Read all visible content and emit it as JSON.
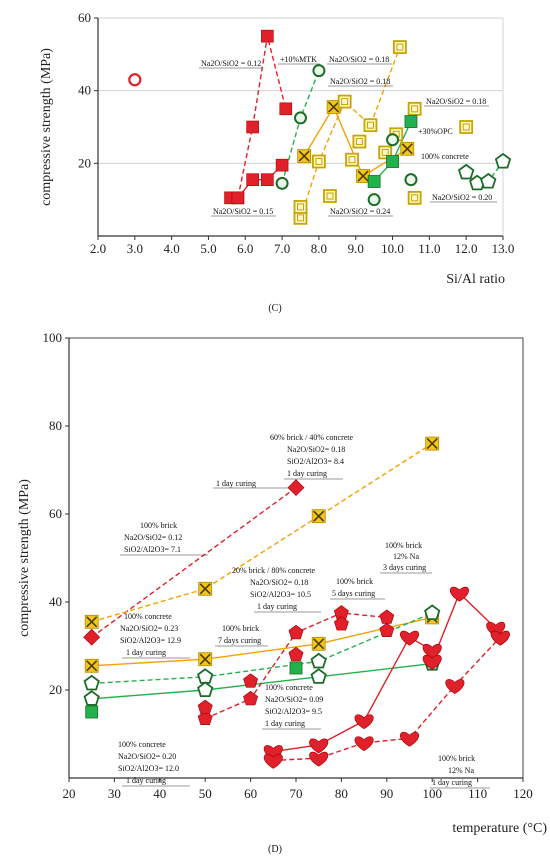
{
  "colors": {
    "red": "#e0202a",
    "red_dark": "#8c0000",
    "yellow": "#f5c518",
    "yellow_dark": "#7a6a00",
    "orange_line": "#f4a200",
    "green": "#22b24c",
    "green_dark": "#1d6b2a",
    "grid": "#cccccc"
  },
  "chart_data": [
    {
      "type": "scatter",
      "panel_label": "(C)",
      "xlabel": "Si/Al ratio",
      "ylabel": "compressive strength (MPa)",
      "xlim": [
        2.0,
        13.0
      ],
      "ylim": [
        0,
        60
      ],
      "xticks": [
        "2.0",
        "3.0",
        "4.0",
        "5.0",
        "6.0",
        "7.0",
        "8.0",
        "9.0",
        "10.0",
        "11.0",
        "12.0",
        "13.0"
      ],
      "yticks": [
        "20",
        "40",
        "60"
      ],
      "grid": true,
      "series": [
        {
          "marker": "red-square",
          "line": "red-dashed",
          "points": [
            [
              5.6,
              10.5
            ],
            [
              5.8,
              10.5
            ],
            [
              6.2,
              30
            ],
            [
              6.6,
              55
            ],
            [
              7.1,
              35
            ]
          ]
        },
        {
          "marker": "red-square",
          "line": "red-solid",
          "points": [
            [
              5.8,
              10.5
            ],
            [
              6.2,
              15.5
            ],
            [
              6.6,
              15.5
            ],
            [
              7.0,
              19.5
            ]
          ]
        },
        {
          "marker": "open-circle-red",
          "points": [
            [
              3.0,
              43
            ]
          ]
        },
        {
          "marker": "green-open-circle",
          "line": "green-dashed",
          "points": [
            [
              7.0,
              14.5
            ],
            [
              7.5,
              32.5
            ],
            [
              8.0,
              45.5
            ]
          ]
        },
        {
          "marker": "yellow-x",
          "line": "orange-solid",
          "points": [
            [
              7.6,
              22
            ],
            [
              8.4,
              35.5
            ],
            [
              9.2,
              16.5
            ],
            [
              10.4,
              24
            ]
          ]
        },
        {
          "marker": "yellow-square",
          "line": "orange-dashed",
          "points": [
            [
              7.5,
              5
            ],
            [
              8.0,
              20.5
            ],
            [
              8.7,
              37
            ],
            [
              9.4,
              30.5
            ],
            [
              10.2,
              52
            ]
          ]
        },
        {
          "marker": "yellow-square",
          "points": [
            [
              7.5,
              8
            ],
            [
              8.3,
              11
            ],
            [
              8.9,
              21
            ],
            [
              9.1,
              26
            ],
            [
              9.8,
              23
            ],
            [
              10.1,
              28
            ],
            [
              10.6,
              35
            ],
            [
              10.6,
              10.5
            ],
            [
              12.0,
              30
            ]
          ]
        },
        {
          "marker": "green-square",
          "line": "green-solid",
          "points": [
            [
              9.5,
              15
            ],
            [
              10.0,
              20.5
            ],
            [
              10.5,
              31.5
            ]
          ]
        },
        {
          "marker": "green-open-circle",
          "points": [
            [
              9.5,
              10
            ],
            [
              10.0,
              26.5
            ],
            [
              10.5,
              15.5
            ]
          ]
        },
        {
          "marker": "green-pentagon",
          "line": "green-dashed",
          "points": [
            [
              12.0,
              17.5
            ],
            [
              12.3,
              14.5
            ],
            [
              12.6,
              15
            ],
            [
              13.0,
              20.5
            ]
          ]
        }
      ],
      "annotations": [
        {
          "text": "Na2O/SiO2 = 0.12"
        },
        {
          "text": "+10%MTK"
        },
        {
          "text": "Na2O/SiO2 = 0.18"
        },
        {
          "text": "Na2O/SiO2 = 0.18"
        },
        {
          "text": "Na2O/SiO2 = 0.18"
        },
        {
          "text": "+30%OPC"
        },
        {
          "text": "100% concrete"
        },
        {
          "text": "Na2O/SiO2 = 0.15"
        },
        {
          "text": "Na2O/SiO2 = 0.24"
        },
        {
          "text": "Na2O/SiO2 = 0.20"
        }
      ]
    },
    {
      "type": "scatter",
      "panel_label": "(D)",
      "xlabel": "temperature (°C)",
      "ylabel": "compressive strength (MPa)",
      "xlim": [
        20,
        120
      ],
      "ylim": [
        0,
        100
      ],
      "xticks": [
        "20",
        "30",
        "40",
        "50",
        "60",
        "70",
        "80",
        "90",
        "100",
        "110",
        "120"
      ],
      "yticks": [
        "20",
        "40",
        "60",
        "80",
        "100"
      ],
      "grid": false,
      "series": [
        {
          "marker": "red-diamond",
          "line": "red-dashed",
          "points": [
            [
              25,
              32
            ],
            [
              70,
              66
            ]
          ]
        },
        {
          "marker": "yellow-x",
          "line": "orange-dashed",
          "points": [
            [
              25,
              35.5
            ],
            [
              50,
              43
            ],
            [
              75,
              59.5
            ],
            [
              100,
              76
            ]
          ]
        },
        {
          "marker": "yellow-x",
          "line": "orange-solid",
          "points": [
            [
              25,
              25.5
            ],
            [
              50,
              27
            ],
            [
              75,
              30.5
            ],
            [
              100,
              36.5
            ]
          ]
        },
        {
          "marker": "green-pentagon",
          "line": "green-dashed",
          "points": [
            [
              25,
              21.5
            ],
            [
              50,
              23
            ],
            [
              75,
              26.5
            ],
            [
              100,
              37.5
            ]
          ]
        },
        {
          "marker": "green-pentagon",
          "line": "green-solid",
          "points": [
            [
              25,
              18
            ],
            [
              50,
              20
            ],
            [
              75,
              23
            ],
            [
              100,
              26
            ]
          ]
        },
        {
          "marker": "green-square",
          "points": [
            [
              25,
              15
            ],
            [
              70,
              25
            ]
          ]
        },
        {
          "marker": "red-pentagon",
          "line": "red-dashed",
          "points": [
            [
              50,
              13.5
            ],
            [
              60,
              18
            ],
            [
              70,
              33
            ],
            [
              80,
              37.5
            ],
            [
              90,
              36.5
            ]
          ]
        },
        {
          "marker": "red-pentagon",
          "points": [
            [
              50,
              16
            ],
            [
              60,
              22
            ],
            [
              70,
              28
            ],
            [
              80,
              35
            ],
            [
              90,
              33.5
            ]
          ]
        },
        {
          "marker": "red-heart",
          "line": "red-solid",
          "points": [
            [
              65,
              6
            ],
            [
              75,
              7.5
            ],
            [
              85,
              13
            ],
            [
              95,
              32
            ],
            [
              100,
              29
            ],
            [
              100,
              26.5
            ],
            [
              106,
              42
            ],
            [
              114,
              34
            ],
            [
              115,
              32
            ]
          ]
        },
        {
          "marker": "red-heart",
          "line": "red-dashed",
          "points": [
            [
              65,
              4
            ],
            [
              75,
              4.5
            ],
            [
              85,
              8
            ],
            [
              95,
              9
            ],
            [
              105,
              21
            ],
            [
              115,
              32
            ]
          ]
        }
      ],
      "annotations": [
        {
          "text": "60% brick / 40% concrete"
        },
        {
          "text": "Na2O/SiO2= 0.18"
        },
        {
          "text": "SiO2/Al2O3= 8.4"
        },
        {
          "text": "1 day curing"
        },
        {
          "text": "1 day curing"
        },
        {
          "text": "100% brick"
        },
        {
          "text": "Na2O/SiO2= 0.12"
        },
        {
          "text": "SiO2/Al2O3= 7.1"
        },
        {
          "text": "100% brick"
        },
        {
          "text": "12% Na"
        },
        {
          "text": "3 days curing"
        },
        {
          "text": "20% brick / 80% concrete"
        },
        {
          "text": "Na2O/SiO2= 0.18"
        },
        {
          "text": "SiO2/Al2O3= 10.5"
        },
        {
          "text": "1 day curing"
        },
        {
          "text": "100% brick"
        },
        {
          "text": "5 days curing"
        },
        {
          "text": "100% concrete"
        },
        {
          "text": "Na2O/SiO2= 0.23"
        },
        {
          "text": "SiO2/Al2O3= 12.9"
        },
        {
          "text": "1 day curing"
        },
        {
          "text": "100% brick"
        },
        {
          "text": "7 days curing"
        },
        {
          "text": "100% concrete"
        },
        {
          "text": "Na2O/SiO2= 0.09"
        },
        {
          "text": "SiO2/Al2O3= 9.5"
        },
        {
          "text": "1 day curing"
        },
        {
          "text": "100% concrete"
        },
        {
          "text": "Na2O/SiO2= 0.20"
        },
        {
          "text": "SiO2/Al2O3= 12.0"
        },
        {
          "text": "1 day curing"
        },
        {
          "text": "100% brick"
        },
        {
          "text": "12% Na"
        },
        {
          "text": "1 day curing"
        }
      ]
    }
  ]
}
